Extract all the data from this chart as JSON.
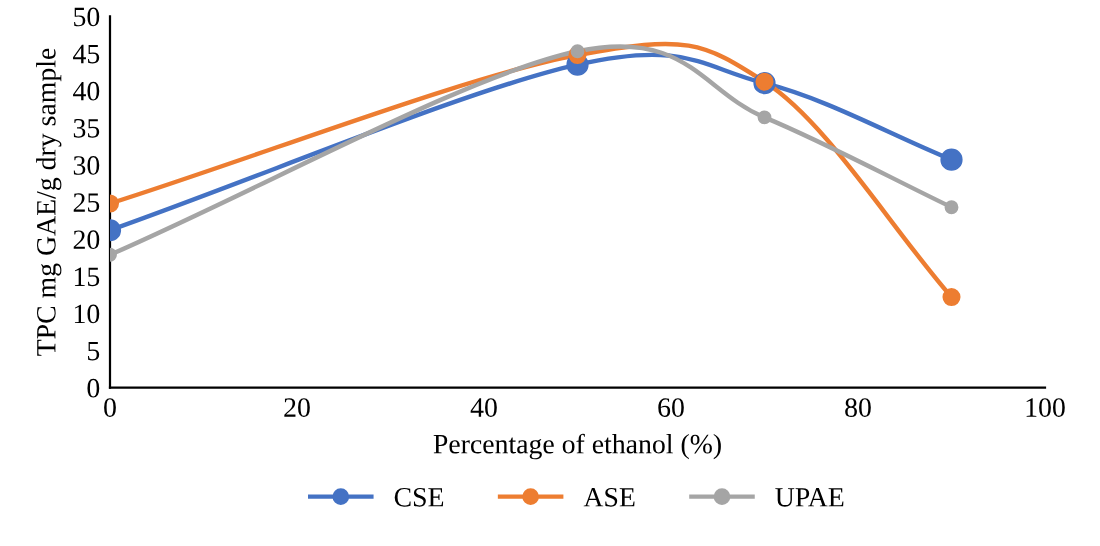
{
  "chart_data": {
    "type": "line",
    "xlabel": "Percentage of ethanol (%)",
    "ylabel": "TPC mg GAE/g dry sample",
    "x": [
      0,
      50,
      70,
      90
    ],
    "series": [
      {
        "name": "CSE",
        "color": "#4472c4",
        "values": [
          21.2,
          43.5,
          41.0,
          30.7
        ]
      },
      {
        "name": "ASE",
        "color": "#ed7d31",
        "values": [
          24.8,
          44.8,
          41.2,
          12.2
        ]
      },
      {
        "name": "UPAE",
        "color": "#a5a5a5",
        "values": [
          17.9,
          45.3,
          36.4,
          24.3
        ]
      }
    ],
    "xlim": [
      0,
      100
    ],
    "xticks": [
      0,
      20,
      40,
      60,
      80,
      100
    ],
    "ylim": [
      0,
      50
    ],
    "yticks": [
      0,
      5,
      10,
      15,
      20,
      25,
      30,
      35,
      40,
      45,
      50
    ],
    "grid": false,
    "legend": "bottom",
    "marker": "circle",
    "line_style": "solid"
  }
}
